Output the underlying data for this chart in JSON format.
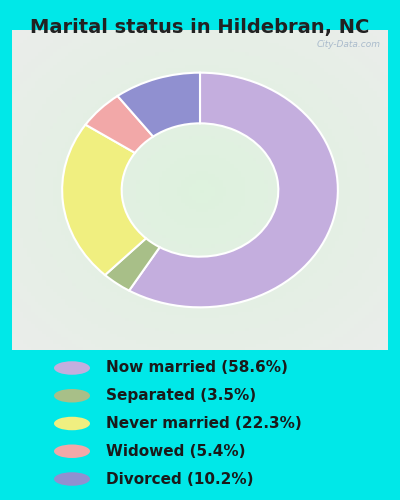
{
  "title": "Marital status in Hildebran, NC",
  "slices": [
    58.6,
    3.5,
    22.3,
    5.4,
    10.2
  ],
  "labels": [
    "Now married (58.6%)",
    "Separated (3.5%)",
    "Never married (22.3%)",
    "Widowed (5.4%)",
    "Divorced (10.2%)"
  ],
  "colors": [
    "#c4aede",
    "#a8bf88",
    "#f0ef80",
    "#f2a8a8",
    "#9090d0"
  ],
  "bg_color_outer": "#00e8e8",
  "bg_color_chart": "#dff0e0",
  "watermark": "City-Data.com",
  "donut_width": 0.45,
  "title_fontsize": 14,
  "legend_fontsize": 11
}
